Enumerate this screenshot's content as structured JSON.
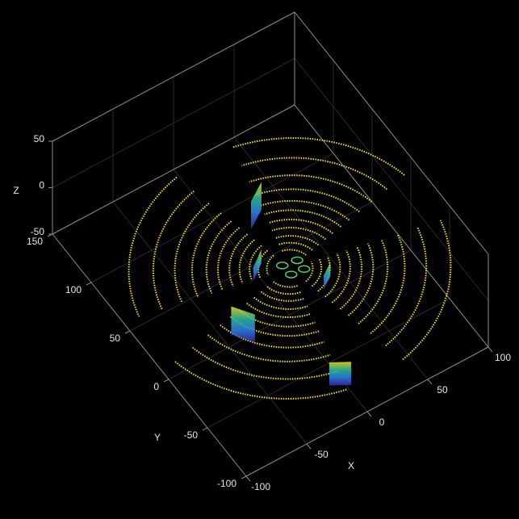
{
  "chart_data": {
    "type": "pointcloud3d",
    "xlabel": "X",
    "ylabel": "Y",
    "zlabel": "Z",
    "xlim": [
      -100,
      100
    ],
    "ylim": [
      -100,
      150
    ],
    "zlim": [
      -50,
      50
    ],
    "xticks": [
      -100,
      -50,
      0,
      50,
      100
    ],
    "yticks": [
      -100,
      -50,
      0,
      50,
      100,
      150
    ],
    "zticks": [
      -50,
      0,
      50
    ],
    "grid": true,
    "ring_color": "#f2dd1c",
    "ring_z": 0,
    "rings": [
      16,
      22,
      28,
      35,
      42,
      50,
      58,
      68,
      80,
      95,
      112
    ],
    "walls": [
      {
        "from": [
          0,
          50
        ],
        "to": [
          15,
          60
        ],
        "zlim": [
          -10,
          20
        ]
      },
      {
        "from": [
          -25,
          8
        ],
        "to": [
          -12,
          18
        ],
        "zlim": [
          -5,
          10
        ]
      },
      {
        "from": [
          12,
          -25
        ],
        "to": [
          22,
          -18
        ],
        "zlim": [
          -5,
          10
        ]
      },
      {
        "from": [
          -58,
          -15
        ],
        "to": [
          -48,
          -30
        ],
        "zlim": [
          -15,
          15
        ]
      },
      {
        "from": [
          -25,
          -90
        ],
        "to": [
          -12,
          -98
        ],
        "zlim": [
          -15,
          10
        ]
      }
    ],
    "object_color": "#4fd06a",
    "objects": [
      [
        -3,
        5
      ],
      [
        8,
        3
      ],
      [
        -2,
        -5
      ],
      [
        8,
        -6
      ]
    ]
  }
}
